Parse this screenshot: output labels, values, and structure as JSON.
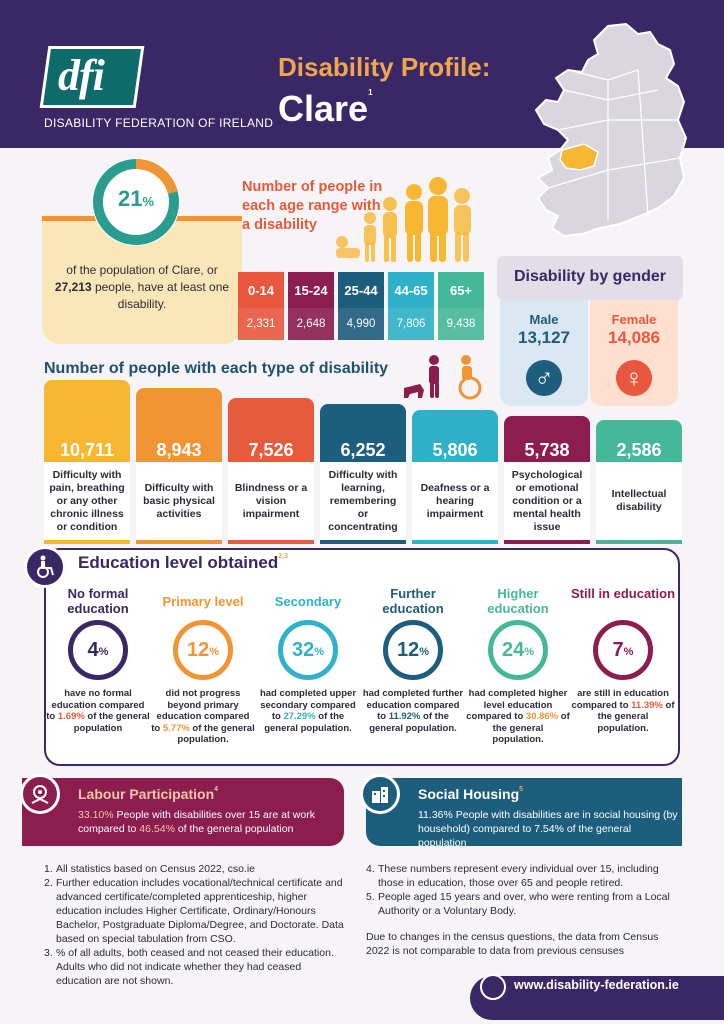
{
  "header": {
    "logo_text": "dfi",
    "org_name": "DISABILITY FEDERATION OF IRELAND",
    "title": "Disability Profile:",
    "county": "Clare",
    "county_note": "1"
  },
  "summary": {
    "percent": "21",
    "percent_symbol": "%",
    "text_before": "of the population of Clare, or ",
    "count": "27,213",
    "text_after": " people, have at least one disability."
  },
  "age": {
    "title": "Number of people in each age range with a disability",
    "ranges": [
      {
        "label": "0-14",
        "value": "2,331",
        "color": "#e9573f"
      },
      {
        "label": "15-24",
        "value": "2,648",
        "color": "#8b1d4f"
      },
      {
        "label": "25-44",
        "value": "4,990",
        "color": "#1d5d7e"
      },
      {
        "label": "44-65",
        "value": "7,806",
        "color": "#2fb2c9"
      },
      {
        "label": "65+",
        "value": "9,438",
        "color": "#46b89a"
      }
    ]
  },
  "gender": {
    "title": "Disability by gender",
    "male_label": "Male",
    "male_count": "13,127",
    "female_label": "Female",
    "female_count": "14,086",
    "male_symbol": "♂",
    "female_symbol": "♀"
  },
  "types": {
    "title": "Number of people with each type of disability",
    "items": [
      {
        "value": "10,711",
        "label": "Difficulty with pain, breathing or any other chronic illness or condition",
        "color": "#f7b733"
      },
      {
        "value": "8,943",
        "label": "Difficulty with basic physical activities",
        "color": "#f19436"
      },
      {
        "value": "7,526",
        "label": "Blindness or a vision impairment",
        "color": "#e55b3c"
      },
      {
        "value": "6,252",
        "label": "Difficulty with learning, remembering or concentrating",
        "color": "#1d5d7e"
      },
      {
        "value": "5,806",
        "label": "Deafness or a hearing impairment",
        "color": "#2fb2c9"
      },
      {
        "value": "5,738",
        "label": "Psychological or emotional condition or a mental health issue",
        "color": "#8b1d4f"
      },
      {
        "value": "2,586",
        "label": "Intellectual disability",
        "color": "#46b89a"
      }
    ]
  },
  "education": {
    "title": "Education level obtained",
    "title_note": "2,3",
    "levels": [
      {
        "label": "No formal education",
        "percent": "4",
        "desc_before": "have no formal education compared to ",
        "compare": "1.69%",
        "desc_after": " of the general population",
        "color": "#3a2766",
        "compare_color": "#e55b3c"
      },
      {
        "label": "Primary level",
        "percent": "12",
        "desc_before": "did not progress beyond primary education compared to ",
        "compare": "5.77%",
        "desc_after": " of the general population.",
        "color": "#f19436",
        "compare_color": "#f19436"
      },
      {
        "label": "Secondary",
        "percent": "32",
        "desc_before": "had completed upper secondary compared to ",
        "compare": "27.29%",
        "desc_after": " of the general population.",
        "color": "#2fb2c9",
        "compare_color": "#2fb2c9"
      },
      {
        "label": "Further education",
        "percent": "12",
        "desc_before": "had completed further education compared to ",
        "compare": "11.92%",
        "desc_after": " of the general population.",
        "color": "#1d5d7e",
        "compare_color": "#1d5d7e"
      },
      {
        "label": "Higher education",
        "percent": "24",
        "desc_before": "had completed higher level education compared to ",
        "compare": "30.86%",
        "desc_after": " of the general population.",
        "color": "#46b89a",
        "compare_color": "#f19436"
      },
      {
        "label": "Still in education",
        "percent": "7",
        "desc_before": "are still in education compared to ",
        "compare": "11.39%",
        "desc_after": " of the general population.",
        "color": "#8b1d4f",
        "compare_color": "#e55b3c"
      }
    ],
    "percent_symbol": "%"
  },
  "labour": {
    "title": "Labour Participation",
    "title_note": "4",
    "value": "33.10%",
    "text": " People with disabilities over 15 are at work compared to ",
    "compare": "46.54%",
    "text_after": " of the general population"
  },
  "housing": {
    "title": "Social Housing",
    "title_note": "5",
    "text": "11.36% People with disabilities are in social housing (by household) compared to 7.54% of the general population"
  },
  "notes_left": [
    {
      "n": "1.",
      "text": "All statistics based on Census 2022, cso.ie"
    },
    {
      "n": "2.",
      "text": "Further education includes vocational/technical certificate and advanced certificate/completed apprenticeship, higher education includes Higher Certificate, Ordinary/Honours Bachelor, Postgraduate Diploma/Degree, and Doctorate. Data based on special tabulation from CSO."
    },
    {
      "n": "3.",
      "text": "% of all adults, both ceased and not ceased their education. Adults who did not indicate whether they had ceased education are not shown."
    }
  ],
  "notes_right": [
    {
      "n": "4.",
      "text": "These numbers represent every individual over 15, including those in education, those over 65 and people retired."
    },
    {
      "n": "5.",
      "text": "People aged 15 years and over, who were renting from a Local Authority or a Voluntary Body."
    }
  ],
  "census_note": "Due to changes in the census questions, the data from Census 2022 is not comparable to data from previous censuses",
  "footer": {
    "website": "www.disability-federation.ie"
  }
}
